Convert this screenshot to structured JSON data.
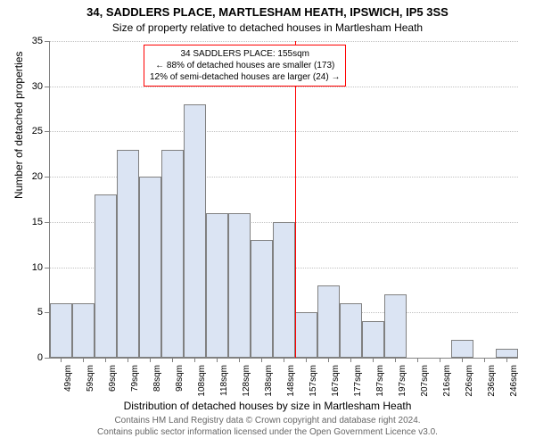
{
  "chart": {
    "type": "histogram",
    "title_main": "34, SADDLERS PLACE, MARTLESHAM HEATH, IPSWICH, IP5 3SS",
    "title_sub": "Size of property relative to detached houses in Martlesham Heath",
    "y_axis_title": "Number of detached properties",
    "x_axis_title": "Distribution of detached houses by size in Martlesham Heath",
    "footer_line1": "Contains HM Land Registry data © Crown copyright and database right 2024.",
    "footer_line2": "Contains public sector information licensed under the Open Government Licence v3.0.",
    "y_max": 35,
    "y_tick_step": 5,
    "y_ticks": [
      0,
      5,
      10,
      15,
      20,
      25,
      30,
      35
    ],
    "x_labels": [
      "49sqm",
      "59sqm",
      "69sqm",
      "79sqm",
      "88sqm",
      "98sqm",
      "108sqm",
      "118sqm",
      "128sqm",
      "138sqm",
      "148sqm",
      "157sqm",
      "167sqm",
      "177sqm",
      "187sqm",
      "197sqm",
      "207sqm",
      "216sqm",
      "226sqm",
      "236sqm",
      "246sqm"
    ],
    "values": [
      6,
      6,
      18,
      23,
      20,
      23,
      28,
      16,
      16,
      13,
      15,
      5,
      8,
      6,
      4,
      7,
      0,
      0,
      2,
      0,
      1
    ],
    "bar_fill": "#dbe4f3",
    "bar_border": "#808080",
    "background_color": "#ffffff",
    "grid_color": "#c0c0c0",
    "ref_line": {
      "position_index": 11,
      "color": "#ff0000"
    },
    "annotation": {
      "border_color": "#ff0000",
      "line1": "34 SADDLERS PLACE: 155sqm",
      "line2": "← 88% of detached houses are smaller (173)",
      "line3": "12% of semi-detached houses are larger (24) →"
    }
  }
}
